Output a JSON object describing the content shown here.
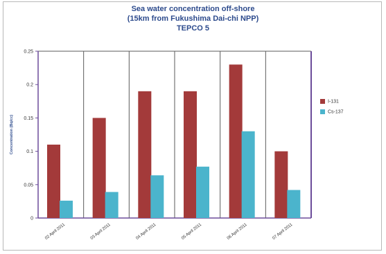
{
  "chart_data": {
    "type": "bar",
    "title": [
      "Sea water concentration off-shore",
      "(15km from Fukushima Dai-chi NPP)",
      "TEPCO  5"
    ],
    "ylabel": "Concentration (Bq/cc)",
    "xlabel": "",
    "ylim": [
      0,
      0.25
    ],
    "yticks": [
      "0",
      "0.05",
      "0.1",
      "0.15",
      "0.2",
      "0.25"
    ],
    "categories": [
      "02 April 2011",
      "03 April 2011",
      "04 April 2011",
      "05 April 2011",
      "06 April 2011",
      "07 April 2011"
    ],
    "series": [
      {
        "name": "I-131",
        "color": "#a33a3a",
        "values": [
          0.11,
          0.15,
          0.19,
          0.19,
          0.23,
          0.1
        ]
      },
      {
        "name": "Cs-137",
        "color": "#4bb4cc",
        "values": [
          0.026,
          0.039,
          0.064,
          0.077,
          0.13,
          0.042
        ]
      }
    ],
    "grid": true,
    "legend": "right"
  }
}
